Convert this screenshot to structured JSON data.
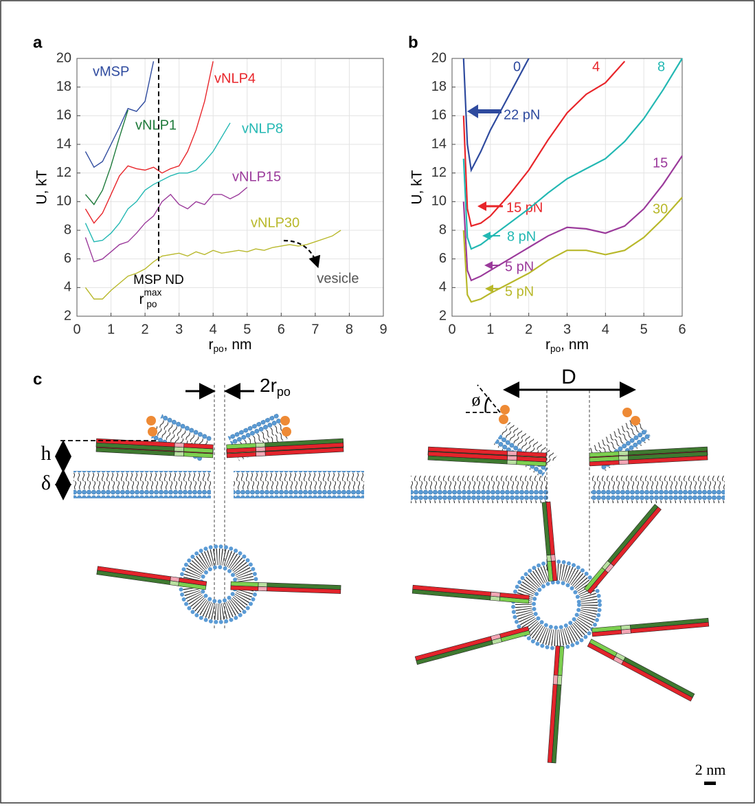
{
  "chart_data": [
    {
      "type": "line",
      "panel_label": "a",
      "x_label": {
        "main": "r",
        "sub": "po",
        "unit": ", nm"
      },
      "y_label": "U, kT",
      "x": [
        0.25,
        0.5,
        0.75,
        1.0,
        1.25,
        1.5,
        1.75,
        2.0,
        2.25,
        2.5,
        2.75,
        3.0,
        3.25,
        3.5,
        3.75,
        4.0,
        4.25,
        4.5,
        4.75,
        5.0,
        5.25,
        5.5,
        5.75,
        6.0,
        6.25,
        6.5,
        6.75,
        7.0,
        7.25,
        7.5,
        7.75
      ],
      "series": [
        {
          "name": "vMSP",
          "color": "#2e4a9e",
          "values": [
            13.5,
            12.4,
            12.8,
            14.0,
            15.2,
            16.5,
            16.3,
            17.0,
            19.8,
            null,
            null,
            null,
            null,
            null,
            null,
            null,
            null,
            null,
            null,
            null,
            null,
            null,
            null,
            null,
            null,
            null,
            null,
            null,
            null,
            null,
            null
          ]
        },
        {
          "name": "vNLP1",
          "color": "#1d7a3a",
          "values": [
            10.5,
            9.8,
            10.8,
            12.5,
            14.5,
            16.4,
            null,
            null,
            null,
            null,
            null,
            null,
            null,
            null,
            null,
            null,
            null,
            null,
            null,
            null,
            null,
            null,
            null,
            null,
            null,
            null,
            null,
            null,
            null,
            null,
            null
          ]
        },
        {
          "name": "vNLP4",
          "color": "#e8252a",
          "values": [
            9.5,
            8.5,
            9.2,
            10.5,
            11.8,
            12.5,
            12.3,
            12.2,
            12.4,
            12.0,
            12.3,
            12.5,
            13.5,
            15.0,
            17.0,
            19.8,
            null,
            null,
            null,
            null,
            null,
            null,
            null,
            null,
            null,
            null,
            null,
            null,
            null,
            null,
            null
          ]
        },
        {
          "name": "vNLP8",
          "color": "#23b8b3",
          "values": [
            8.5,
            7.2,
            7.3,
            7.8,
            8.5,
            9.5,
            10.0,
            10.8,
            11.2,
            11.5,
            11.8,
            12.0,
            12.0,
            12.2,
            12.8,
            13.5,
            14.5,
            15.5,
            null,
            null,
            null,
            null,
            null,
            null,
            null,
            null,
            null,
            null,
            null,
            null,
            null
          ]
        },
        {
          "name": "vNLP15",
          "color": "#9b3a9b",
          "values": [
            7.5,
            5.8,
            6.0,
            6.5,
            7.0,
            7.2,
            7.8,
            8.5,
            9.0,
            10.0,
            10.5,
            9.8,
            9.5,
            10.0,
            9.8,
            10.5,
            10.5,
            10.2,
            10.5,
            11.0,
            null,
            null,
            null,
            null,
            null,
            null,
            null,
            null,
            null,
            null,
            null
          ]
        },
        {
          "name": "vNLP30",
          "color": "#b8b82a",
          "values": [
            4.0,
            3.2,
            3.2,
            3.8,
            4.3,
            4.8,
            5.0,
            5.3,
            5.8,
            6.2,
            6.3,
            6.4,
            6.2,
            6.5,
            6.3,
            6.6,
            6.4,
            6.5,
            6.6,
            6.5,
            6.7,
            6.6,
            6.8,
            6.9,
            7.0,
            6.9,
            7.0,
            7.2,
            7.4,
            7.6,
            8.0
          ]
        }
      ],
      "xlim": [
        0,
        9
      ],
      "ylim": [
        2,
        20
      ],
      "xticks": [
        0,
        1,
        2,
        3,
        4,
        5,
        6,
        7,
        8,
        9
      ],
      "yticks": [
        2,
        4,
        6,
        8,
        10,
        12,
        14,
        16,
        18,
        20
      ],
      "grid": true,
      "vline_x": 2.4,
      "vline_label": "MSP ND",
      "vline_symbol": {
        "main": "r",
        "sup": "max",
        "sub": "po"
      },
      "annotation": "vesicle"
    },
    {
      "type": "line",
      "panel_label": "b",
      "x_label": {
        "main": "r",
        "sub": "po",
        "unit": ", nm"
      },
      "y_label": "U, kT",
      "x": [
        0.3,
        0.4,
        0.5,
        0.75,
        1.0,
        1.5,
        2.0,
        2.5,
        3.0,
        3.5,
        4.0,
        4.5,
        5.0,
        5.5,
        6.0
      ],
      "series": [
        {
          "name": "0",
          "color": "#2e4a9e",
          "force_label": "22 pN",
          "values": [
            20,
            14,
            12.2,
            13.5,
            15,
            17.5,
            20,
            null,
            null,
            null,
            null,
            null,
            null,
            null,
            null
          ]
        },
        {
          "name": "4",
          "color": "#e8252a",
          "force_label": "15 pN",
          "values": [
            16,
            9.5,
            8.3,
            8.5,
            9.0,
            10.5,
            12.2,
            14.3,
            16.2,
            17.5,
            18.3,
            19.8,
            null,
            null,
            null
          ]
        },
        {
          "name": "8",
          "color": "#23b8b3",
          "force_label": "8 pN",
          "values": [
            13,
            7.5,
            6.7,
            7.0,
            7.5,
            8.5,
            9.5,
            10.6,
            11.6,
            12.3,
            13.0,
            14.2,
            15.8,
            17.8,
            20
          ]
        },
        {
          "name": "15",
          "color": "#9b3a9b",
          "force_label": "5 pN",
          "values": [
            10,
            5.2,
            4.5,
            4.8,
            5.2,
            6.0,
            6.8,
            7.6,
            8.2,
            8.1,
            7.8,
            8.3,
            9.5,
            11.2,
            13.2
          ]
        },
        {
          "name": "30",
          "color": "#b8b82a",
          "force_label": "5 pN",
          "values": [
            8,
            3.5,
            3.0,
            3.2,
            3.6,
            4.3,
            5.0,
            5.9,
            6.6,
            6.6,
            6.3,
            6.6,
            7.5,
            8.8,
            10.3
          ]
        }
      ],
      "xlim": [
        0,
        6
      ],
      "ylim": [
        2,
        20
      ],
      "xticks": [
        0,
        1,
        2,
        3,
        4,
        5,
        6
      ],
      "yticks": [
        2,
        4,
        6,
        8,
        10,
        12,
        14,
        16,
        18,
        20
      ],
      "grid": true
    }
  ],
  "diagram": {
    "panel_label": "c",
    "gap_label": {
      "main": "2r",
      "sub": "po"
    },
    "h": "h",
    "delta": "δ",
    "D": "D",
    "phi": "ø",
    "scale_bar": "2 nm"
  }
}
